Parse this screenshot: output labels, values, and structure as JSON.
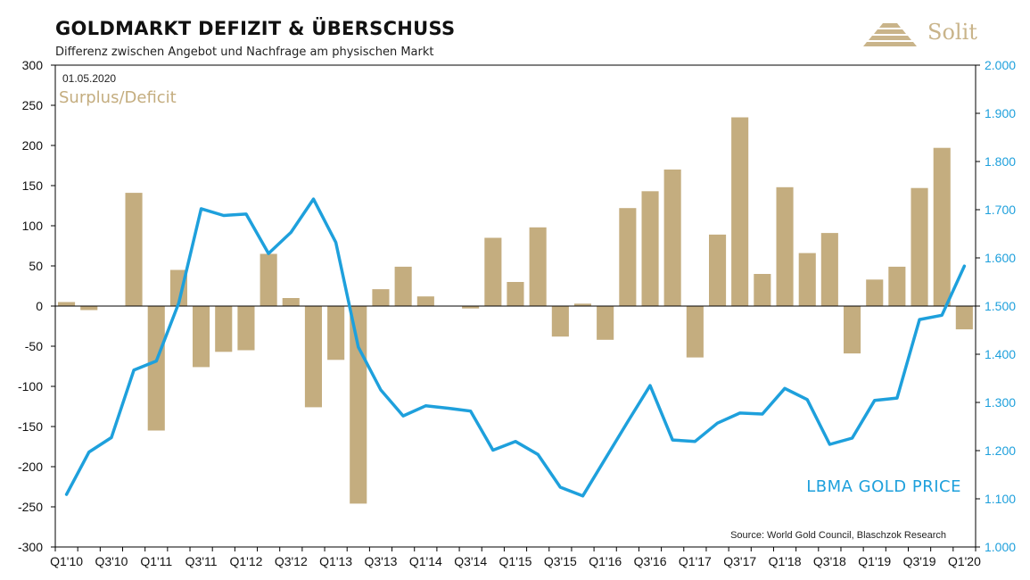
{
  "header": {
    "title": "GOLDMARKT DEFIZIT & ÜBERSCHUSS",
    "subtitle": "Differenz zwischen Angebot und Nachfrage am physischen Markt",
    "logo_text": "Solit"
  },
  "annotations": {
    "date": "01.05.2020",
    "bar_series_label": "Surplus/Deficit",
    "line_series_label": "LBMA GOLD PRICE",
    "source": "Source: World Gold Council, Blaschzok Research"
  },
  "colors": {
    "bars": "#c4ad7f",
    "line": "#1ea0dc",
    "axis": "#000000"
  },
  "chart_data": {
    "type": "bar",
    "title": "GOLDMARKT DEFIZIT & ÜBERSCHUSS",
    "subtitle": "Differenz zwischen Angebot und Nachfrage am physischen Markt",
    "categories": [
      "Q1'10",
      "Q2'10",
      "Q3'10",
      "Q4'10",
      "Q1'11",
      "Q2'11",
      "Q3'11",
      "Q4'11",
      "Q1'12",
      "Q2'12",
      "Q3'12",
      "Q4'12",
      "Q1'13",
      "Q2'13",
      "Q3'13",
      "Q4'13",
      "Q1'14",
      "Q2'14",
      "Q3'14",
      "Q4'14",
      "Q1'15",
      "Q2'15",
      "Q3'15",
      "Q4'15",
      "Q1'16",
      "Q2'16",
      "Q3'16",
      "Q4'16",
      "Q1'17",
      "Q2'17",
      "Q3'17",
      "Q4'17",
      "Q1'18",
      "Q2'18",
      "Q3'18",
      "Q4'18",
      "Q1'19",
      "Q2'19",
      "Q3'19",
      "Q4'19",
      "Q1'20"
    ],
    "x_tick_labels": [
      "Q1'10",
      "Q3'10",
      "Q1'11",
      "Q3'11",
      "Q1'12",
      "Q3'12",
      "Q1'13",
      "Q3'13",
      "Q1'14",
      "Q3'14",
      "Q1'15",
      "Q3'15",
      "Q1'16",
      "Q3'16",
      "Q1'17",
      "Q3'17",
      "Q1'18",
      "Q3'18",
      "Q1'19",
      "Q3'19",
      "Q1'20"
    ],
    "series": [
      {
        "name": "Surplus/Deficit",
        "type": "bar",
        "axis": "left",
        "values": [
          5,
          -5,
          0,
          141,
          -155,
          45,
          -76,
          -57,
          -55,
          65,
          10,
          -126,
          -67,
          -246,
          21,
          49,
          12,
          0,
          -3,
          85,
          30,
          98,
          -38,
          3,
          -42,
          122,
          143,
          170,
          -64,
          89,
          235,
          40,
          148,
          66,
          91,
          -59,
          33,
          49,
          147,
          197,
          -29
        ]
      },
      {
        "name": "LBMA GOLD PRICE",
        "type": "line",
        "axis": "right",
        "values": [
          1109,
          1197,
          1227,
          1367,
          1386,
          1506,
          1702,
          1688,
          1691,
          1609,
          1653,
          1722,
          1632,
          1415,
          1326,
          1272,
          1293,
          1288,
          1282,
          1201,
          1219,
          1192,
          1124,
          1106,
          1183,
          1260,
          1335,
          1222,
          1219,
          1257,
          1278,
          1276,
          1329,
          1306,
          1213,
          1226,
          1304,
          1309,
          1472,
          1481,
          1583
        ]
      }
    ],
    "y_left": {
      "ticks": [
        300,
        250,
        200,
        150,
        100,
        50,
        0,
        -50,
        -100,
        -150,
        -200,
        -250,
        -300
      ],
      "ylim": [
        -300,
        300
      ]
    },
    "y_right": {
      "ticks": [
        "2.000",
        "1.900",
        "1.800",
        "1.700",
        "1.600",
        "1.500",
        "1.400",
        "1.300",
        "1.200",
        "1.100",
        "1.000"
      ],
      "ylim": [
        1000,
        2000
      ]
    },
    "grid": false
  }
}
